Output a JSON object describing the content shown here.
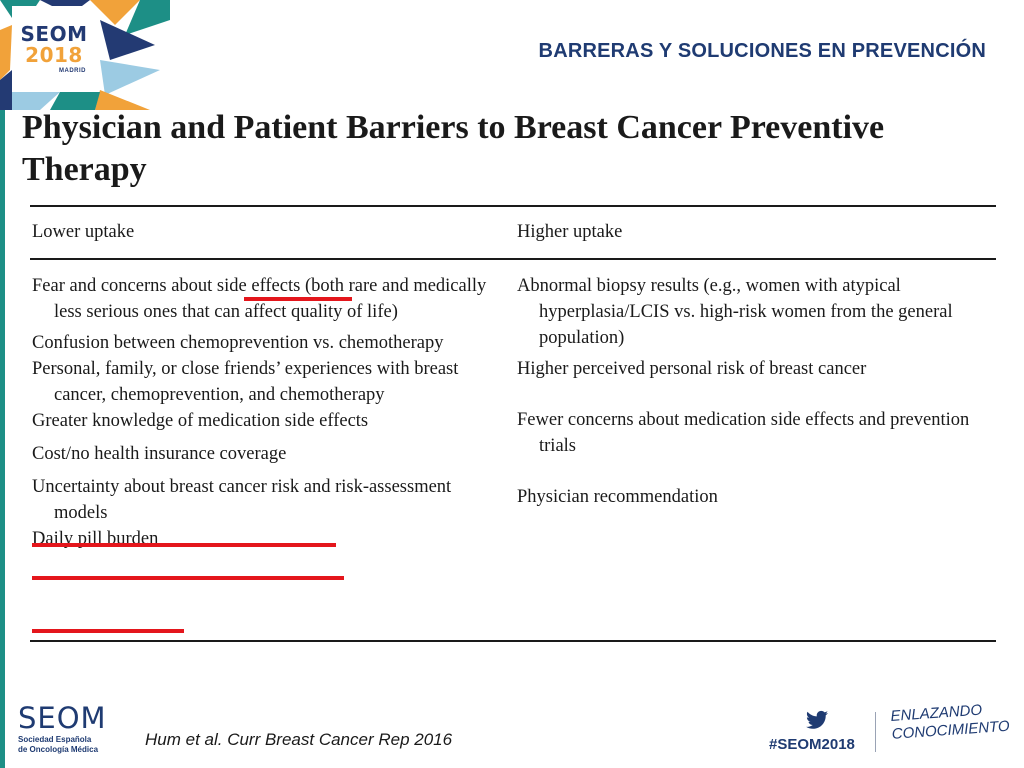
{
  "header": {
    "title": "BARRERAS Y SOLUCIONES EN PREVENCIÓN"
  },
  "logo": {
    "brand": "SEOM",
    "year": "2018",
    "city": "MADRID"
  },
  "figure": {
    "title": "Physician and Patient Barriers to Breast Cancer Preventive Therapy",
    "columns": [
      "Lower uptake",
      "Higher uptake"
    ],
    "lower_uptake": [
      "Fear and concerns about side effects (both rare and medically less serious ones that can affect quality of life)",
      "Confusion between chemoprevention vs. chemotherapy",
      "Personal, family, or close friends’ experiences with breast cancer, chemoprevention, and chemotherapy",
      "Greater knowledge of medication side effects",
      "Cost/no health insurance coverage",
      "Uncertainty about breast cancer risk and risk-assessment models",
      "Daily pill burden"
    ],
    "higher_uptake": [
      "Abnormal biopsy results (e.g., women with atypical hyperplasia/LCIS vs. high-risk women from the general population)",
      "Higher perceived personal risk of breast cancer",
      "Fewer concerns about medication side effects and prevention trials",
      "Physician recommendation"
    ],
    "highlighted_phrases": [
      "side effects",
      "Cost/no health insurance coverage",
      "Uncertainty about breast cancer risk",
      "Daily pill burden"
    ]
  },
  "footer": {
    "org_logo": "SEOM",
    "org_name_line1": "Sociedad Española",
    "org_name_line2": "de Oncología Médica",
    "citation": "Hum et al. Curr Breast Cancer Rep 2016",
    "hashtag": "#SEOM2018",
    "slogan_line1": "ENLAZANDO",
    "slogan_line2": "CONOCIMIENTO",
    "twitter_icon": "twitter-bird-icon"
  },
  "colors": {
    "brand_blue": "#1f3b72",
    "accent_teal": "#1d8f86",
    "accent_orange": "#f1a23a",
    "highlight_red": "#e4161c"
  }
}
